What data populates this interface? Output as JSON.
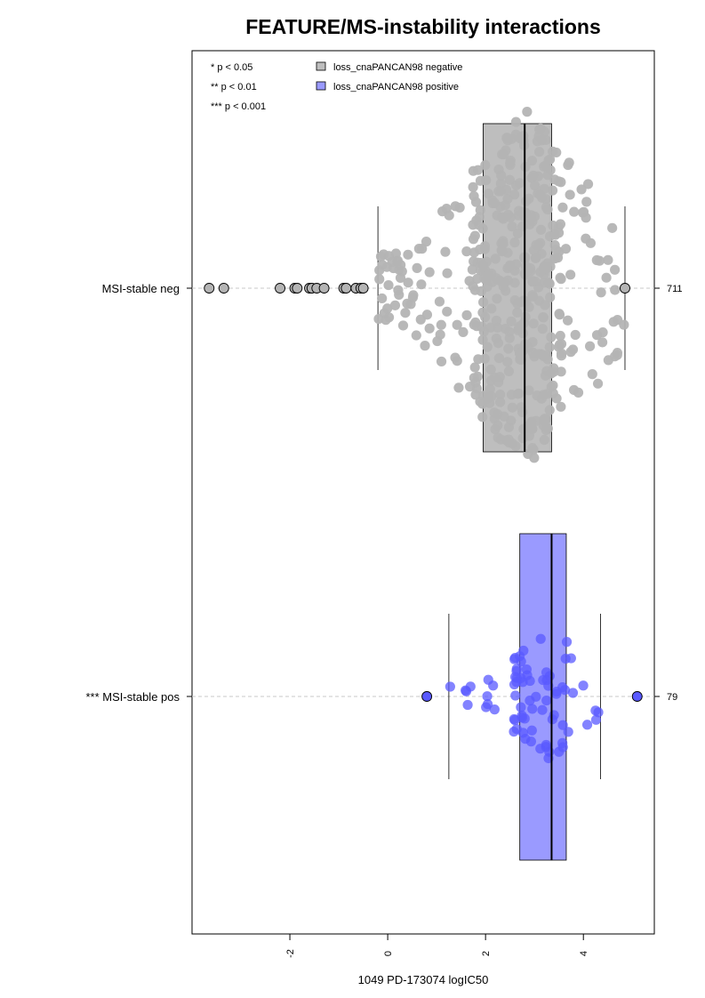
{
  "chart_data": {
    "type": "box",
    "title": "FEATURE/MS-instability interactions",
    "xlabel": "1049 PD-173074 logIC50",
    "xlim": [
      -4.0,
      5.45
    ],
    "x_ticks": [
      {
        "value": -2,
        "label": "-2"
      },
      {
        "value": 0,
        "label": "0"
      },
      {
        "value": 2,
        "label": "2"
      },
      {
        "value": 4,
        "label": "4"
      }
    ],
    "significance_legend": [
      "* p < 0.05",
      "** p < 0.01",
      "*** p < 0.001"
    ],
    "legend": [
      {
        "label": "loss_cnaPANCAN98 negative",
        "color": "#bebebe"
      },
      {
        "label": "loss_cnaPANCAN98 positive",
        "color": "#9a9aff"
      }
    ],
    "groups": [
      {
        "label": "MSI-stable neg",
        "n_label": "711",
        "color": "#bebebe",
        "point_color": "#b4b4b4",
        "whisker_low": -0.2,
        "q1": 1.95,
        "median": 2.8,
        "q3": 3.35,
        "whisker_high": 4.85,
        "outliers": [
          -3.65,
          -3.35,
          -2.2,
          -1.9,
          -1.85,
          -1.6,
          -1.55,
          -1.45,
          -1.3,
          -0.9,
          -0.85,
          -0.65,
          -0.55,
          -0.5,
          4.85
        ]
      },
      {
        "label": "*** MSI-stable pos",
        "n_label": "79",
        "color": "#9a9aff",
        "point_color": "#5a5aff",
        "whisker_low": 1.25,
        "q1": 2.7,
        "median": 3.35,
        "q3": 3.65,
        "whisker_high": 4.35,
        "outliers": [
          0.8,
          5.1
        ]
      }
    ]
  }
}
